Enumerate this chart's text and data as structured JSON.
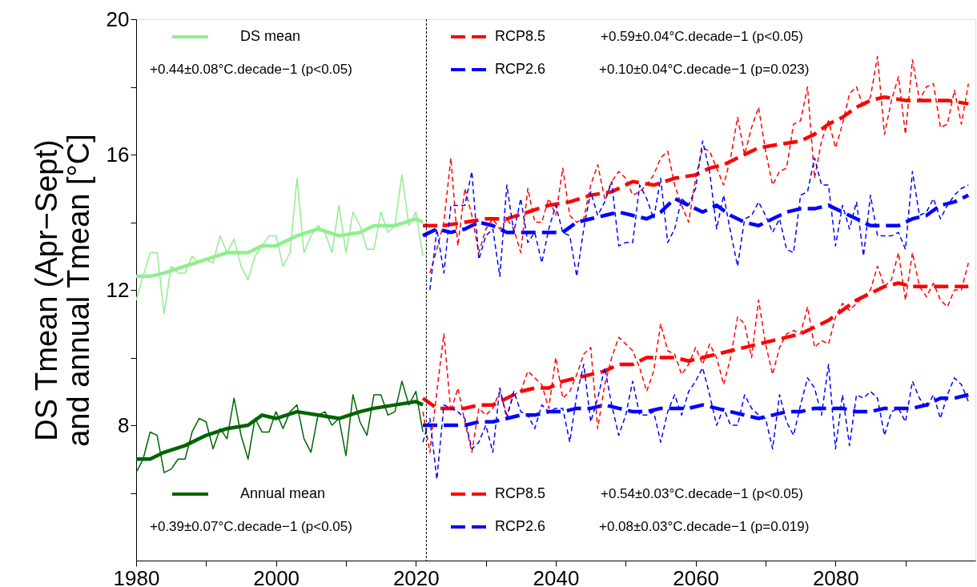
{
  "chart_data": {
    "type": "line",
    "ylabel": "DS Tmean (Apr−Sept)\nand annual Tmean [°C]",
    "xlim": [
      1980,
      2100
    ],
    "ylim": [
      4,
      20
    ],
    "xticks": [
      1980,
      {
        "value": 1990,
        "label": null
      },
      2000,
      {
        "value": 2010,
        "label": null
      },
      2020,
      {
        "value": 2030,
        "label": null
      },
      2040,
      {
        "value": 2050,
        "label": null
      },
      2060,
      {
        "value": 2070,
        "label": null
      },
      2080,
      {
        "value": 2090,
        "label": null
      }
    ],
    "yticks": [
      {
        "value": 6,
        "label": null
      },
      8,
      {
        "value": 10,
        "label": null
      },
      12,
      {
        "value": 14,
        "label": null
      },
      16,
      {
        "value": 18,
        "label": null
      },
      20
    ],
    "grid": false,
    "legend": "top left",
    "marker": "none",
    "ref_lines": [
      {
        "axis": "x",
        "value": 2021.5,
        "color": "#000000",
        "line_style": "dashed"
      }
    ],
    "annotations": [
      "+0.44±0.08°C.decade−1 (p<0.05)",
      "+0.59±0.04°C.decade−1 (p<0.05)",
      "+0.10±0.04°C.decade−1 (p=0.023)",
      "+0.39±0.07°C.decade−1 (p<0.05)",
      "+0.54±0.03°C.decade−1 (p<0.05)",
      "+0.08±0.03°C.decade−1 (p=0.019)"
    ],
    "series": [
      {
        "name": "DS mean",
        "color": "#90ee90",
        "line_style": "solid",
        "x": [
          1980,
          1982,
          1984,
          1987,
          1990,
          1993,
          1996,
          1998,
          2000,
          2003,
          2006,
          2009,
          2012,
          2014,
          2017,
          2020,
          2021
        ],
        "values": [
          12.4,
          12.4,
          12.5,
          12.7,
          12.9,
          13.1,
          13.1,
          13.3,
          13.3,
          13.6,
          13.8,
          13.6,
          13.7,
          13.9,
          13.9,
          14.1,
          14.0
        ]
      },
      {
        "name": "RCP8.5",
        "color": "#ff0000",
        "line_style": "dashed",
        "x": [
          2021,
          2024,
          2027,
          2030,
          2033,
          2036,
          2039,
          2042,
          2045,
          2048,
          2051,
          2054,
          2057,
          2060,
          2062,
          2064,
          2067,
          2069,
          2072,
          2075,
          2077,
          2079,
          2081,
          2083,
          2085,
          2087,
          2090,
          2093,
          2096,
          2099
        ],
        "values": [
          13.9,
          13.9,
          14.0,
          14.1,
          14.1,
          14.3,
          14.5,
          14.6,
          14.8,
          14.9,
          15.2,
          15.1,
          15.3,
          15.4,
          15.6,
          15.7,
          16.0,
          16.2,
          16.3,
          16.4,
          16.6,
          16.9,
          17.1,
          17.4,
          17.6,
          17.7,
          17.6,
          17.6,
          17.6,
          17.5
        ]
      },
      {
        "name": "RCP2.6",
        "color": "#0000ff",
        "line_style": "dashed",
        "x": [
          2021,
          2023,
          2025,
          2027,
          2029,
          2031,
          2033,
          2035,
          2037,
          2039,
          2041,
          2043,
          2045,
          2047,
          2049,
          2051,
          2053,
          2055,
          2057,
          2059,
          2061,
          2063,
          2065,
          2067,
          2069,
          2071,
          2073,
          2075,
          2077,
          2079,
          2081,
          2083,
          2085,
          2087,
          2089,
          2091,
          2093,
          2095,
          2097,
          2099
        ],
        "values": [
          13.6,
          13.8,
          13.7,
          13.8,
          14.0,
          13.9,
          13.7,
          13.7,
          13.7,
          13.7,
          13.7,
          14.0,
          14.1,
          14.2,
          14.3,
          14.2,
          14.1,
          14.3,
          14.7,
          14.5,
          14.3,
          14.5,
          14.2,
          14.0,
          13.9,
          14.1,
          14.3,
          14.4,
          14.4,
          14.5,
          14.3,
          14.1,
          13.9,
          13.9,
          13.9,
          14.1,
          14.2,
          14.5,
          14.6,
          14.8
        ]
      },
      {
        "name": "Annual mean",
        "color": "#006400",
        "line_style": "solid",
        "x": [
          1980,
          1982,
          1984,
          1987,
          1990,
          1993,
          1996,
          1998,
          2000,
          2003,
          2006,
          2009,
          2012,
          2014,
          2017,
          2020,
          2021
        ],
        "values": [
          7.0,
          7.0,
          7.2,
          7.4,
          7.7,
          7.9,
          8.0,
          8.3,
          8.2,
          8.4,
          8.3,
          8.2,
          8.4,
          8.5,
          8.6,
          8.7,
          8.6
        ]
      },
      {
        "name": "RCP8.5",
        "color": "#ff0000",
        "line_style": "dashed",
        "x": [
          2021,
          2023,
          2025,
          2027,
          2029,
          2031,
          2033,
          2035,
          2037,
          2039,
          2041,
          2043,
          2045,
          2047,
          2049,
          2051,
          2053,
          2055,
          2057,
          2059,
          2061,
          2063,
          2065,
          2067,
          2069,
          2071,
          2073,
          2075,
          2077,
          2079,
          2081,
          2083,
          2085,
          2087,
          2089,
          2091,
          2093,
          2095,
          2097,
          2099
        ],
        "values": [
          8.8,
          8.5,
          8.5,
          8.5,
          8.6,
          8.6,
          8.8,
          9.0,
          9.1,
          9.1,
          9.3,
          9.4,
          9.5,
          9.6,
          9.8,
          9.8,
          10.0,
          10.0,
          10.0,
          9.9,
          10.0,
          10.1,
          10.2,
          10.3,
          10.4,
          10.5,
          10.6,
          10.7,
          10.9,
          11.1,
          11.4,
          11.7,
          11.9,
          12.1,
          12.2,
          12.1,
          12.1,
          12.1,
          12.1,
          12.1
        ]
      },
      {
        "name": "RCP2.6",
        "color": "#0000ff",
        "line_style": "dashed",
        "x": [
          2021,
          2023,
          2025,
          2027,
          2029,
          2031,
          2033,
          2035,
          2037,
          2039,
          2041,
          2043,
          2045,
          2047,
          2049,
          2051,
          2053,
          2055,
          2057,
          2059,
          2061,
          2063,
          2065,
          2067,
          2069,
          2071,
          2073,
          2075,
          2077,
          2079,
          2081,
          2083,
          2085,
          2087,
          2089,
          2091,
          2093,
          2095,
          2097,
          2099
        ],
        "values": [
          8.0,
          8.0,
          8.0,
          8.0,
          8.1,
          8.1,
          8.2,
          8.3,
          8.3,
          8.4,
          8.4,
          8.5,
          8.5,
          8.6,
          8.5,
          8.4,
          8.4,
          8.5,
          8.5,
          8.5,
          8.6,
          8.5,
          8.4,
          8.3,
          8.2,
          8.3,
          8.4,
          8.4,
          8.5,
          8.5,
          8.5,
          8.4,
          8.4,
          8.5,
          8.5,
          8.5,
          8.6,
          8.8,
          8.8,
          8.9
        ]
      },
      {
        "color": "#90ee90",
        "line_style": "solid",
        "x": [
          1980,
          1981,
          1982,
          1983,
          1984,
          1985,
          1986,
          1987,
          1988,
          1989,
          1990,
          1991,
          1992,
          1993,
          1994,
          1995,
          1996,
          1997,
          1998,
          1999,
          2000,
          2001,
          2002,
          2003,
          2004,
          2005,
          2006,
          2007,
          2008,
          2009,
          2010,
          2011,
          2012,
          2013,
          2014,
          2015,
          2016,
          2017,
          2018,
          2019,
          2020,
          2021
        ],
        "values": [
          11.7,
          12.4,
          13.1,
          13.1,
          11.3,
          12.7,
          12.5,
          12.5,
          13.0,
          12.8,
          12.9,
          12.8,
          13.6,
          13.1,
          13.5,
          12.7,
          12.3,
          13.0,
          13.3,
          13.6,
          13.6,
          12.7,
          13.1,
          15.3,
          13.1,
          13.6,
          13.9,
          13.7,
          13.1,
          14.5,
          13.1,
          14.3,
          13.9,
          13.2,
          13.2,
          14.3,
          13.7,
          13.9,
          15.4,
          13.9,
          14.3,
          13.0
        ]
      },
      {
        "color": "#006400",
        "line_style": "solid",
        "x": [
          1980,
          1981,
          1982,
          1983,
          1984,
          1985,
          1986,
          1987,
          1988,
          1989,
          1990,
          1991,
          1992,
          1993,
          1994,
          1995,
          1996,
          1997,
          1998,
          1999,
          2000,
          2001,
          2002,
          2003,
          2004,
          2005,
          2006,
          2007,
          2008,
          2009,
          2010,
          2011,
          2012,
          2013,
          2014,
          2015,
          2016,
          2017,
          2018,
          2019,
          2020,
          2021
        ],
        "values": [
          6.6,
          7.0,
          7.8,
          7.7,
          6.6,
          6.7,
          7.0,
          7.0,
          7.8,
          8.2,
          8.1,
          7.3,
          7.9,
          7.6,
          8.8,
          7.7,
          7.0,
          8.2,
          7.8,
          7.8,
          8.4,
          7.9,
          8.4,
          8.6,
          7.6,
          7.2,
          8.3,
          8.4,
          8.0,
          8.2,
          7.1,
          8.9,
          8.1,
          7.7,
          8.9,
          8.9,
          8.3,
          8.4,
          9.3,
          8.6,
          9.0,
          7.8
        ]
      },
      {
        "color": "#ff0000",
        "line_style": "dashed",
        "x": [
          2022,
          2023,
          2024,
          2025,
          2026,
          2027,
          2028,
          2029,
          2030,
          2031,
          2032,
          2033,
          2034,
          2035,
          2036,
          2037,
          2038,
          2039,
          2040,
          2041,
          2042,
          2043,
          2044,
          2045,
          2046,
          2047,
          2048,
          2049,
          2050,
          2051,
          2052,
          2053,
          2054,
          2055,
          2056,
          2057,
          2058,
          2059,
          2060,
          2061,
          2062,
          2063,
          2064,
          2065,
          2066,
          2067,
          2068,
          2069,
          2070,
          2071,
          2072,
          2073,
          2074,
          2075,
          2076,
          2077,
          2078,
          2079,
          2080,
          2081,
          2082,
          2083,
          2084,
          2085,
          2086,
          2087,
          2088,
          2089,
          2090,
          2091,
          2092,
          2093,
          2094,
          2095,
          2096,
          2097,
          2098,
          2099
        ],
        "values": [
          12.5,
          13.2,
          14.0,
          15.9,
          13.3,
          15.0,
          14.2,
          13.1,
          13.8,
          14.1,
          13.8,
          14.1,
          13.8,
          13.1,
          15.0,
          14.0,
          14.0,
          14.7,
          14.2,
          15.6,
          14.2,
          14.0,
          14.1,
          15.1,
          15.7,
          14.7,
          15.2,
          15.5,
          15.3,
          14.8,
          14.9,
          15.1,
          15.4,
          15.9,
          16.1,
          15.1,
          14.5,
          14.0,
          15.3,
          16.2,
          16.1,
          15.6,
          15.1,
          15.9,
          17.1,
          16.0,
          16.8,
          17.4,
          16.1,
          15.1,
          15.5,
          15.6,
          16.9,
          17.0,
          18.0,
          15.3,
          16.4,
          17.0,
          16.2,
          16.9,
          17.8,
          18.0,
          17.4,
          17.7,
          18.9,
          16.6,
          17.6,
          18.3,
          16.6,
          18.8,
          17.6,
          18.0,
          18.1,
          16.8,
          16.9,
          17.9,
          16.9,
          18.1
        ]
      },
      {
        "color": "#0000ff",
        "line_style": "dashed",
        "x": [
          2022,
          2023,
          2024,
          2025,
          2026,
          2027,
          2028,
          2029,
          2030,
          2031,
          2032,
          2033,
          2034,
          2035,
          2036,
          2037,
          2038,
          2039,
          2040,
          2041,
          2042,
          2043,
          2044,
          2045,
          2046,
          2047,
          2048,
          2049,
          2050,
          2051,
          2052,
          2053,
          2054,
          2055,
          2056,
          2057,
          2058,
          2059,
          2060,
          2061,
          2062,
          2063,
          2064,
          2065,
          2066,
          2067,
          2068,
          2069,
          2070,
          2071,
          2072,
          2073,
          2074,
          2075,
          2076,
          2077,
          2078,
          2079,
          2080,
          2081,
          2082,
          2083,
          2084,
          2085,
          2086,
          2087,
          2088,
          2089,
          2090,
          2091,
          2092,
          2093,
          2094,
          2095,
          2096,
          2097,
          2098,
          2099
        ],
        "values": [
          12.0,
          13.8,
          12.5,
          14.5,
          14.5,
          14.5,
          15.5,
          12.9,
          13.6,
          13.8,
          12.4,
          15.1,
          13.7,
          14.7,
          13.4,
          13.7,
          12.8,
          13.8,
          14.5,
          13.7,
          13.6,
          12.4,
          13.8,
          14.9,
          14.2,
          14.6,
          15.2,
          13.3,
          13.4,
          13.4,
          15.1,
          14.7,
          14.1,
          15.3,
          13.4,
          13.8,
          14.7,
          14.5,
          15.0,
          16.4,
          15.5,
          13.8,
          14.8,
          13.7,
          12.7,
          14.1,
          14.2,
          14.6,
          14.2,
          13.7,
          14.1,
          13.2,
          13.1,
          14.8,
          14.9,
          15.9,
          15.1,
          15.1,
          13.3,
          14.5,
          13.8,
          14.6,
          13.0,
          14.8,
          13.6,
          13.6,
          13.6,
          13.7,
          13.2,
          15.5,
          14.2,
          14.3,
          14.7,
          14.1,
          14.5,
          14.8,
          15.0,
          15.1
        ]
      },
      {
        "color": "#ff0000",
        "line_style": "dashed",
        "x": [
          2021,
          2022,
          2023,
          2024,
          2025,
          2026,
          2027,
          2028,
          2029,
          2030,
          2031,
          2032,
          2033,
          2034,
          2035,
          2036,
          2037,
          2038,
          2039,
          2040,
          2041,
          2042,
          2043,
          2044,
          2045,
          2046,
          2047,
          2048,
          2049,
          2050,
          2051,
          2052,
          2053,
          2054,
          2055,
          2056,
          2057,
          2058,
          2059,
          2060,
          2061,
          2062,
          2063,
          2064,
          2065,
          2066,
          2067,
          2068,
          2069,
          2070,
          2071,
          2072,
          2073,
          2074,
          2075,
          2076,
          2077,
          2078,
          2079,
          2080,
          2081,
          2082,
          2083,
          2084,
          2085,
          2086,
          2087,
          2088,
          2089,
          2090,
          2091,
          2092,
          2093,
          2094,
          2095,
          2096,
          2097,
          2098,
          2099
        ],
        "values": [
          8.4,
          7.2,
          9.0,
          10.7,
          8.4,
          9.1,
          8.1,
          7.2,
          8.5,
          8.3,
          8.5,
          9.0,
          8.3,
          8.9,
          9.0,
          9.6,
          9.4,
          9.2,
          8.5,
          10.0,
          8.8,
          9.0,
          9.5,
          10.1,
          10.3,
          7.9,
          9.2,
          10.0,
          10.6,
          10.4,
          10.2,
          9.7,
          9.0,
          9.6,
          11.0,
          10.2,
          10.1,
          9.5,
          9.8,
          10.3,
          9.8,
          10.4,
          10.0,
          9.2,
          10.0,
          11.2,
          11.0,
          10.0,
          11.7,
          10.4,
          9.5,
          10.3,
          10.7,
          10.8,
          10.7,
          11.5,
          10.3,
          10.5,
          10.4,
          11.2,
          11.6,
          11.4,
          11.6,
          11.8,
          12.0,
          12.7,
          12.1,
          12.3,
          13.1,
          11.7,
          13.1,
          12.1,
          11.8,
          12.2,
          11.7,
          11.5,
          12.0,
          12.0,
          12.8
        ]
      },
      {
        "color": "#0000ff",
        "line_style": "dashed",
        "x": [
          2021,
          2022,
          2023,
          2024,
          2025,
          2026,
          2027,
          2028,
          2029,
          2030,
          2031,
          2032,
          2033,
          2034,
          2035,
          2036,
          2037,
          2038,
          2039,
          2040,
          2041,
          2042,
          2043,
          2044,
          2045,
          2046,
          2047,
          2048,
          2049,
          2050,
          2051,
          2052,
          2053,
          2054,
          2055,
          2056,
          2057,
          2058,
          2059,
          2060,
          2061,
          2062,
          2063,
          2064,
          2065,
          2066,
          2067,
          2068,
          2069,
          2070,
          2071,
          2072,
          2073,
          2074,
          2075,
          2076,
          2077,
          2078,
          2079,
          2080,
          2081,
          2082,
          2083,
          2084,
          2085,
          2086,
          2087,
          2088,
          2089,
          2090,
          2091,
          2092,
          2093,
          2094,
          2095,
          2096,
          2097,
          2098,
          2099
        ],
        "values": [
          7.5,
          8.2,
          6.4,
          8.6,
          8.5,
          8.4,
          8.2,
          7.3,
          7.5,
          8.0,
          7.2,
          9.1,
          8.2,
          9.0,
          8.4,
          8.3,
          7.9,
          8.6,
          8.4,
          8.5,
          8.5,
          7.5,
          8.9,
          9.8,
          8.1,
          8.8,
          9.7,
          8.6,
          7.7,
          8.3,
          9.3,
          8.3,
          8.3,
          8.4,
          7.5,
          8.4,
          8.9,
          8.3,
          9.0,
          9.3,
          9.7,
          8.9,
          8.0,
          8.5,
          8.0,
          8.0,
          8.9,
          8.5,
          8.3,
          8.2,
          7.3,
          8.9,
          8.1,
          7.7,
          8.6,
          9.4,
          9.1,
          8.3,
          9.8,
          7.3,
          8.9,
          7.4,
          8.9,
          8.8,
          9.0,
          8.8,
          7.7,
          8.4,
          8.5,
          8.1,
          9.3,
          8.8,
          8.5,
          8.9,
          8.2,
          8.9,
          9.4,
          9.2,
          8.7
        ]
      }
    ]
  }
}
